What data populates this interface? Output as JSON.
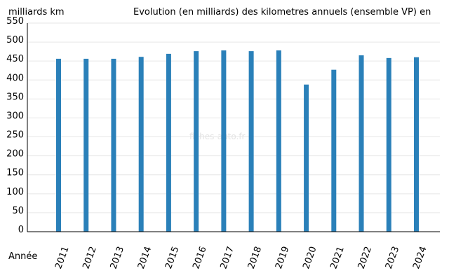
{
  "chart_data": {
    "type": "bar",
    "title": "Evolution (en milliards) des kilometres annuels (ensemble VP) en",
    "ylabel": "milliards km",
    "xlabel": "Année",
    "watermark": "fiches-auto.fr",
    "categories": [
      "2011",
      "2012",
      "2013",
      "2014",
      "2015",
      "2016",
      "2017",
      "2018",
      "2019",
      "2020",
      "2021",
      "2022",
      "2023",
      "2024"
    ],
    "values": [
      456,
      456,
      456,
      461,
      469,
      476,
      478,
      476,
      478,
      388,
      427,
      465,
      458,
      460
    ],
    "ylim": [
      0,
      550
    ],
    "yticks": [
      0,
      50,
      100,
      150,
      200,
      250,
      300,
      350,
      400,
      450,
      500,
      550
    ],
    "grid": true,
    "bar_color": "#2a80b9"
  }
}
